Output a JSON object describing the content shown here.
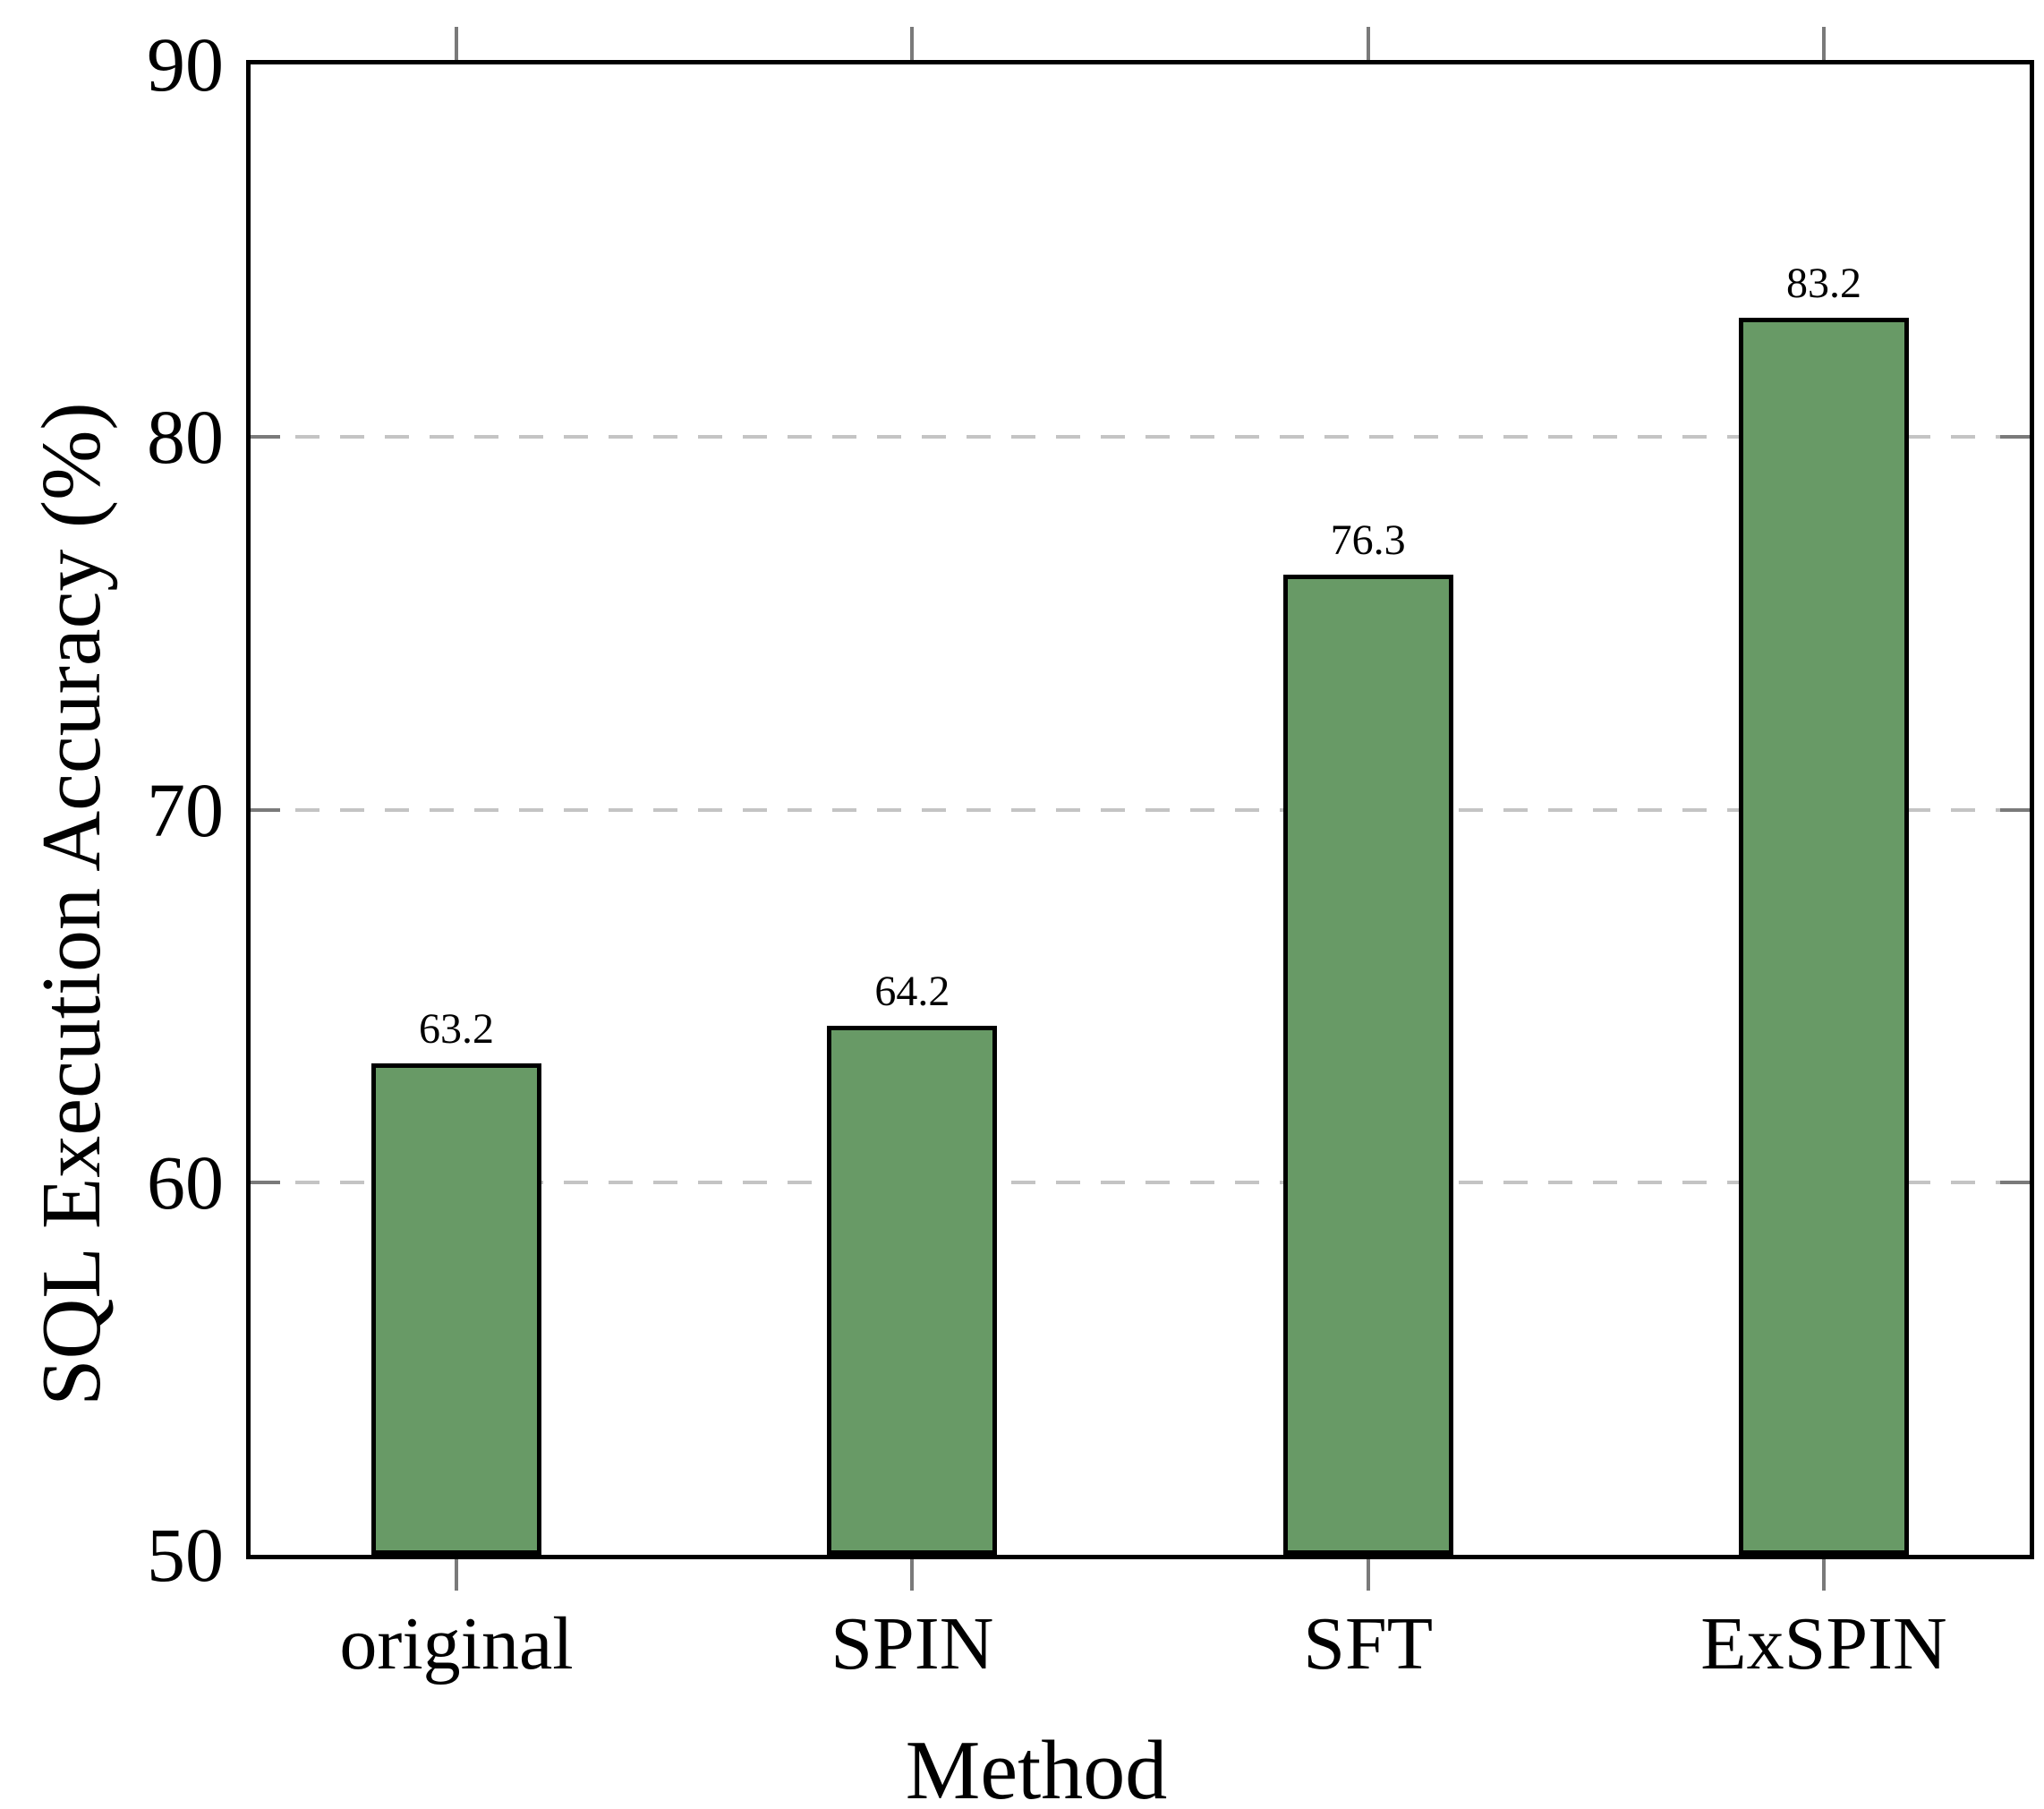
{
  "chart_data": {
    "type": "bar",
    "title": "",
    "categories": [
      "original",
      "SPIN",
      "SFT",
      "ExSPIN"
    ],
    "values": [
      63.2,
      64.2,
      76.3,
      83.2
    ],
    "bar_labels": [
      "63.2",
      "64.2",
      "76.3",
      "83.2"
    ],
    "xlabel": "Method",
    "ylabel": "SQL Execution Accuracy (%)",
    "ylim": [
      50,
      90
    ],
    "yticks": [
      50,
      60,
      70,
      80,
      90
    ],
    "ytick_labels": [
      "50",
      "60",
      "70",
      "80",
      "90"
    ],
    "gridline_values": [
      60,
      70,
      80
    ],
    "grid": "horizontal-dashed",
    "legend": "none",
    "colors": {
      "bar_fill": "#689a66",
      "bar_edge": "#000000",
      "grid": "#c4c4c4",
      "tick": "#7a7a7a",
      "spine": "#000000",
      "text": "#000000"
    }
  }
}
